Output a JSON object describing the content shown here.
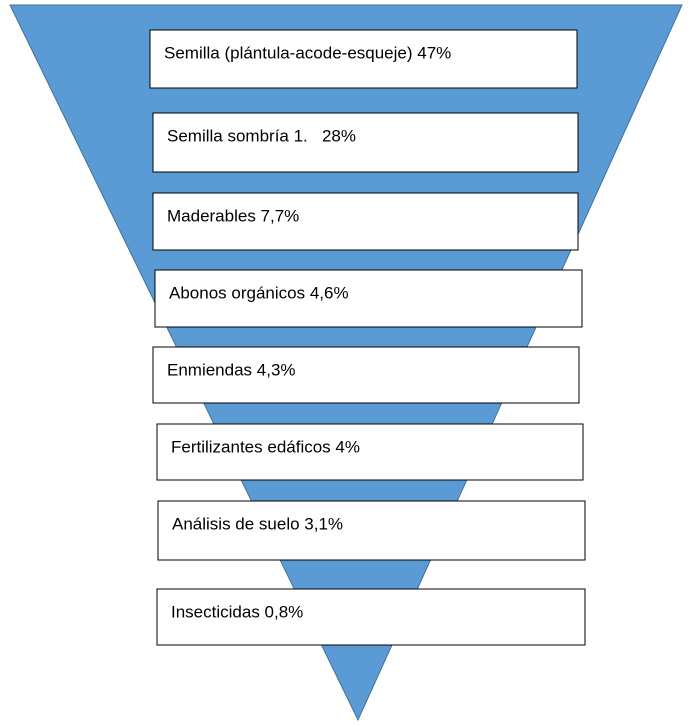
{
  "boxes": [
    {
      "label": "Semilla (plántula-acode-esqueje) 47%"
    },
    {
      "label": "Semilla sombría 1.   28%"
    },
    {
      "label": "Maderables 7,7%"
    },
    {
      "label": "Abonos orgánicos 4,6%"
    },
    {
      "label": "Enmiendas 4,3%"
    },
    {
      "label": "Fertilizantes edáficos 4%"
    },
    {
      "label": "Análisis de suelo 3,1%"
    },
    {
      "label": "Insecticidas 0,8%"
    }
  ]
}
